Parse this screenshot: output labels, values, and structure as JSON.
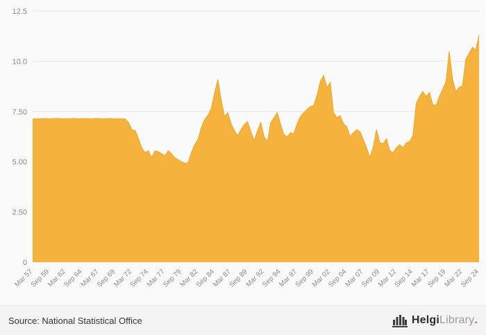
{
  "chart": {
    "area_color": "#f5b23c",
    "area_stroke_color": "#f0a72c",
    "grid_color": "#e6e6e6",
    "tick_label_color": "#8a8a8a",
    "background": "#fafafa"
  },
  "chart_data": {
    "type": "area",
    "title": "",
    "xlabel": "",
    "ylabel": "",
    "ylim": [
      0,
      12.5
    ],
    "grid": "horizontal",
    "legend": "none",
    "y_ticks": [
      {
        "value": 12.5,
        "label": "12.5"
      },
      {
        "value": 10.0,
        "label": "10.0"
      },
      {
        "value": 7.5,
        "label": "7.50"
      },
      {
        "value": 5.0,
        "label": "5.00"
      },
      {
        "value": 2.5,
        "label": "2.50"
      },
      {
        "value": 0,
        "label": "0"
      }
    ],
    "x_tick_labels": [
      "Mar 57",
      "Sep 59",
      "Mar 62",
      "Sep 64",
      "Mar 67",
      "Sep 69",
      "Mar 72",
      "Sep 74",
      "Mar 77",
      "Sep 79",
      "Mar 82",
      "Sep 84",
      "Mar 87",
      "Sep 89",
      "Mar 92",
      "Sep 94",
      "Mar 97",
      "Sep 99",
      "Mar 02",
      "Sep 04",
      "Mar 07",
      "Sep 09",
      "Mar 12",
      "Sep 14",
      "Mar 17",
      "Sep 19",
      "Mar 22",
      "Sep 24"
    ],
    "x_start_year": 1957.17,
    "x_end_year": 2024.67,
    "series": [
      {
        "name": "value",
        "start_label": "Mar 57",
        "end_label": "Sep 24",
        "frequency": "semiannual (Mar, Sep)",
        "values": [
          7.14,
          7.14,
          7.14,
          7.15,
          7.15,
          7.14,
          7.14,
          7.15,
          7.15,
          7.14,
          7.14,
          7.14,
          7.15,
          7.15,
          7.14,
          7.15,
          7.15,
          7.14,
          7.14,
          7.15,
          7.15,
          7.14,
          7.14,
          7.15,
          7.15,
          7.14,
          7.14,
          7.14,
          7.13,
          6.95,
          6.6,
          6.55,
          6.15,
          5.7,
          5.45,
          5.55,
          5.2,
          5.55,
          5.5,
          5.4,
          5.3,
          5.55,
          5.4,
          5.2,
          5.1,
          5.0,
          4.92,
          4.95,
          5.45,
          5.85,
          6.1,
          6.7,
          7.1,
          7.3,
          7.65,
          8.4,
          9.1,
          8.1,
          7.25,
          7.45,
          6.9,
          6.55,
          6.3,
          6.6,
          6.85,
          7.0,
          6.5,
          6.05,
          6.55,
          6.95,
          6.25,
          6.0,
          6.95,
          7.2,
          7.45,
          6.85,
          6.35,
          6.25,
          6.45,
          6.4,
          6.9,
          7.25,
          7.45,
          7.6,
          7.75,
          7.8,
          8.3,
          9.0,
          9.3,
          8.7,
          8.95,
          7.45,
          7.2,
          7.3,
          6.9,
          6.75,
          6.25,
          6.45,
          6.6,
          6.5,
          6.1,
          5.7,
          5.2,
          5.75,
          6.6,
          5.95,
          5.9,
          6.15,
          5.55,
          5.45,
          5.7,
          5.85,
          5.7,
          5.95,
          6.0,
          6.3,
          7.9,
          8.25,
          8.5,
          8.25,
          8.45,
          7.85,
          7.8,
          8.25,
          8.6,
          9.0,
          10.5,
          9.1,
          8.5,
          8.7,
          8.8,
          10.1,
          10.4,
          10.7,
          10.55,
          11.3
        ]
      }
    ]
  },
  "footer": {
    "source": "Source: National Statistical Office",
    "brand": {
      "bold": "Helgi",
      "light": "Library",
      "dot": "."
    }
  }
}
